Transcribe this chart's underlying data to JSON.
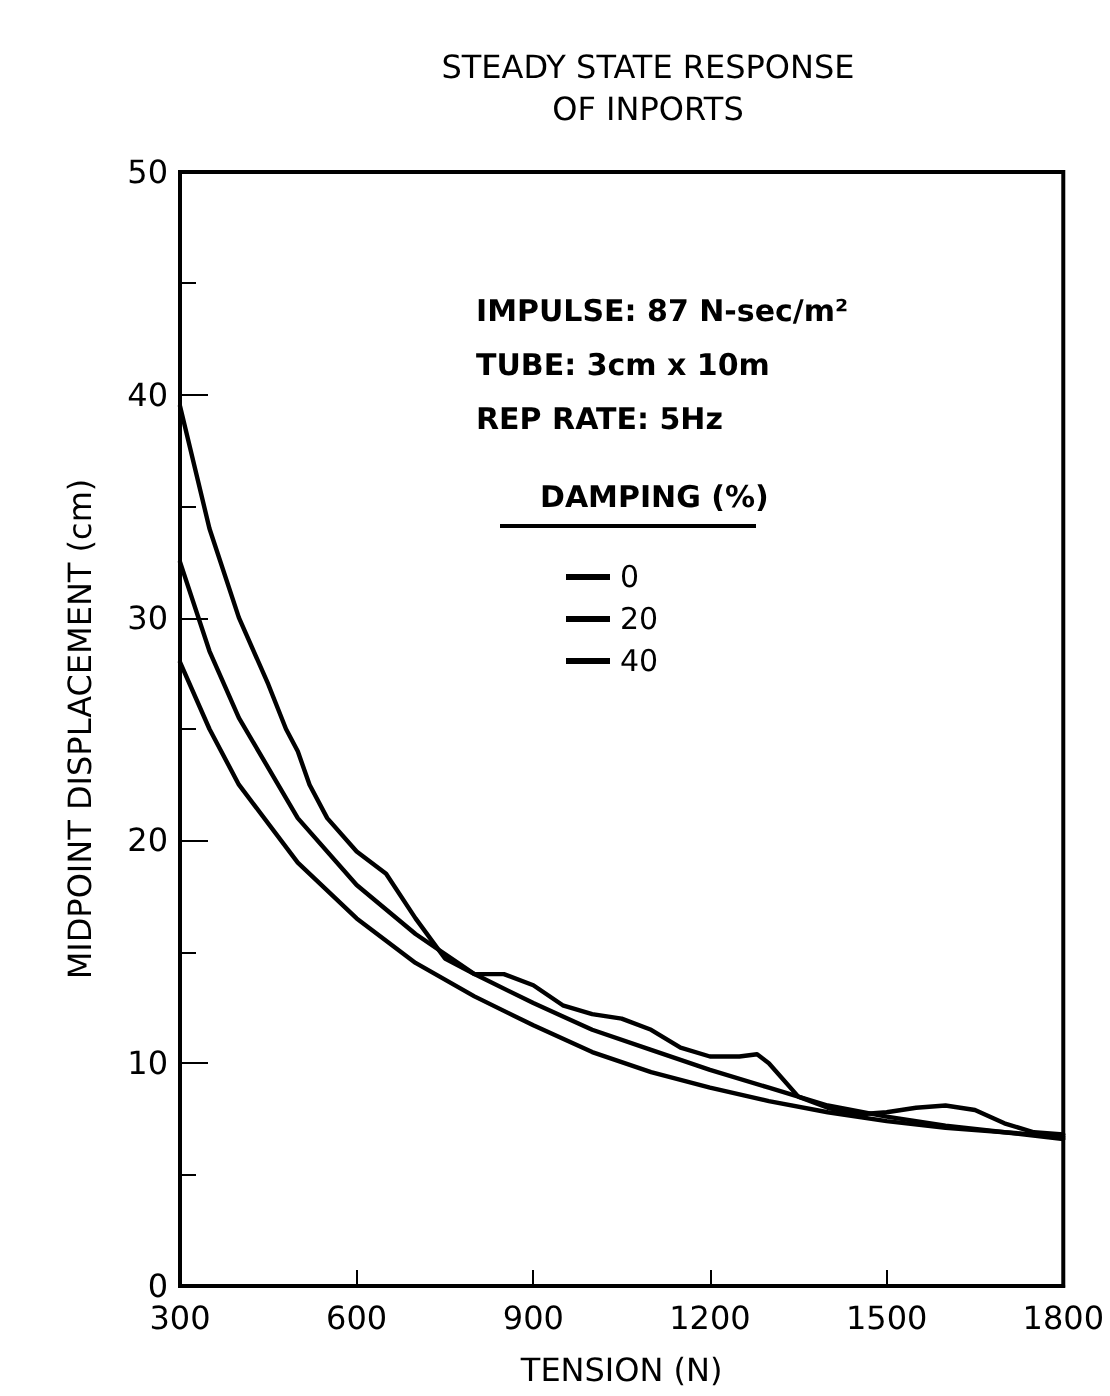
{
  "chart_data": {
    "type": "line",
    "title": "STEADY STATE RESPONSE\nOF INPORTS",
    "xlabel": "TENSION (N)",
    "ylabel": "MIDPOINT DISPLACEMENT (cm)",
    "legend_title": "DAMPING (%)",
    "annotations": [
      "IMPULSE: 87 N-sec/m²",
      "TUBE: 3cm x 10m",
      "REP RATE: 5Hz"
    ],
    "xlim": [
      300,
      1800
    ],
    "xticks": [
      300,
      600,
      900,
      1200,
      1500,
      1800
    ],
    "ylim": [
      0,
      50
    ],
    "yticks": [
      0,
      10,
      20,
      30,
      40,
      50
    ],
    "grid": false,
    "legend": "top right",
    "marker": "none",
    "line_style": "solid",
    "series": [
      {
        "name": "0",
        "color": "#000000",
        "x": [
          300,
          350,
          400,
          450,
          480,
          500,
          520,
          550,
          600,
          650,
          700,
          750,
          800,
          850,
          900,
          950,
          1000,
          1050,
          1100,
          1150,
          1200,
          1250,
          1280,
          1300,
          1350,
          1400,
          1450,
          1500,
          1550,
          1600,
          1650,
          1700,
          1750,
          1800
        ],
        "values": [
          39.5,
          34,
          30,
          27,
          25,
          24,
          22.5,
          21,
          19.5,
          18.5,
          16.5,
          14.7,
          14,
          14,
          13.5,
          12.6,
          12.2,
          12,
          11.5,
          10.7,
          10.3,
          10.3,
          10.4,
          10,
          8.5,
          8,
          7.7,
          7.8,
          8,
          8.1,
          7.9,
          7.3,
          6.9,
          6.8
        ]
      },
      {
        "name": "20",
        "color": "#000000",
        "x": [
          300,
          350,
          400,
          500,
          600,
          700,
          800,
          900,
          1000,
          1100,
          1200,
          1300,
          1400,
          1500,
          1600,
          1700,
          1800
        ],
        "values": [
          32.5,
          28.5,
          25.5,
          21,
          18,
          15.8,
          14,
          12.7,
          11.5,
          10.6,
          9.7,
          8.9,
          8.1,
          7.6,
          7.2,
          6.9,
          6.7
        ]
      },
      {
        "name": "40",
        "color": "#000000",
        "x": [
          300,
          350,
          400,
          500,
          600,
          700,
          800,
          900,
          1000,
          1100,
          1200,
          1300,
          1400,
          1500,
          1600,
          1700,
          1800
        ],
        "values": [
          28,
          25,
          22.5,
          19,
          16.5,
          14.5,
          13,
          11.7,
          10.5,
          9.6,
          8.9,
          8.3,
          7.8,
          7.4,
          7.1,
          6.9,
          6.6
        ]
      }
    ]
  }
}
